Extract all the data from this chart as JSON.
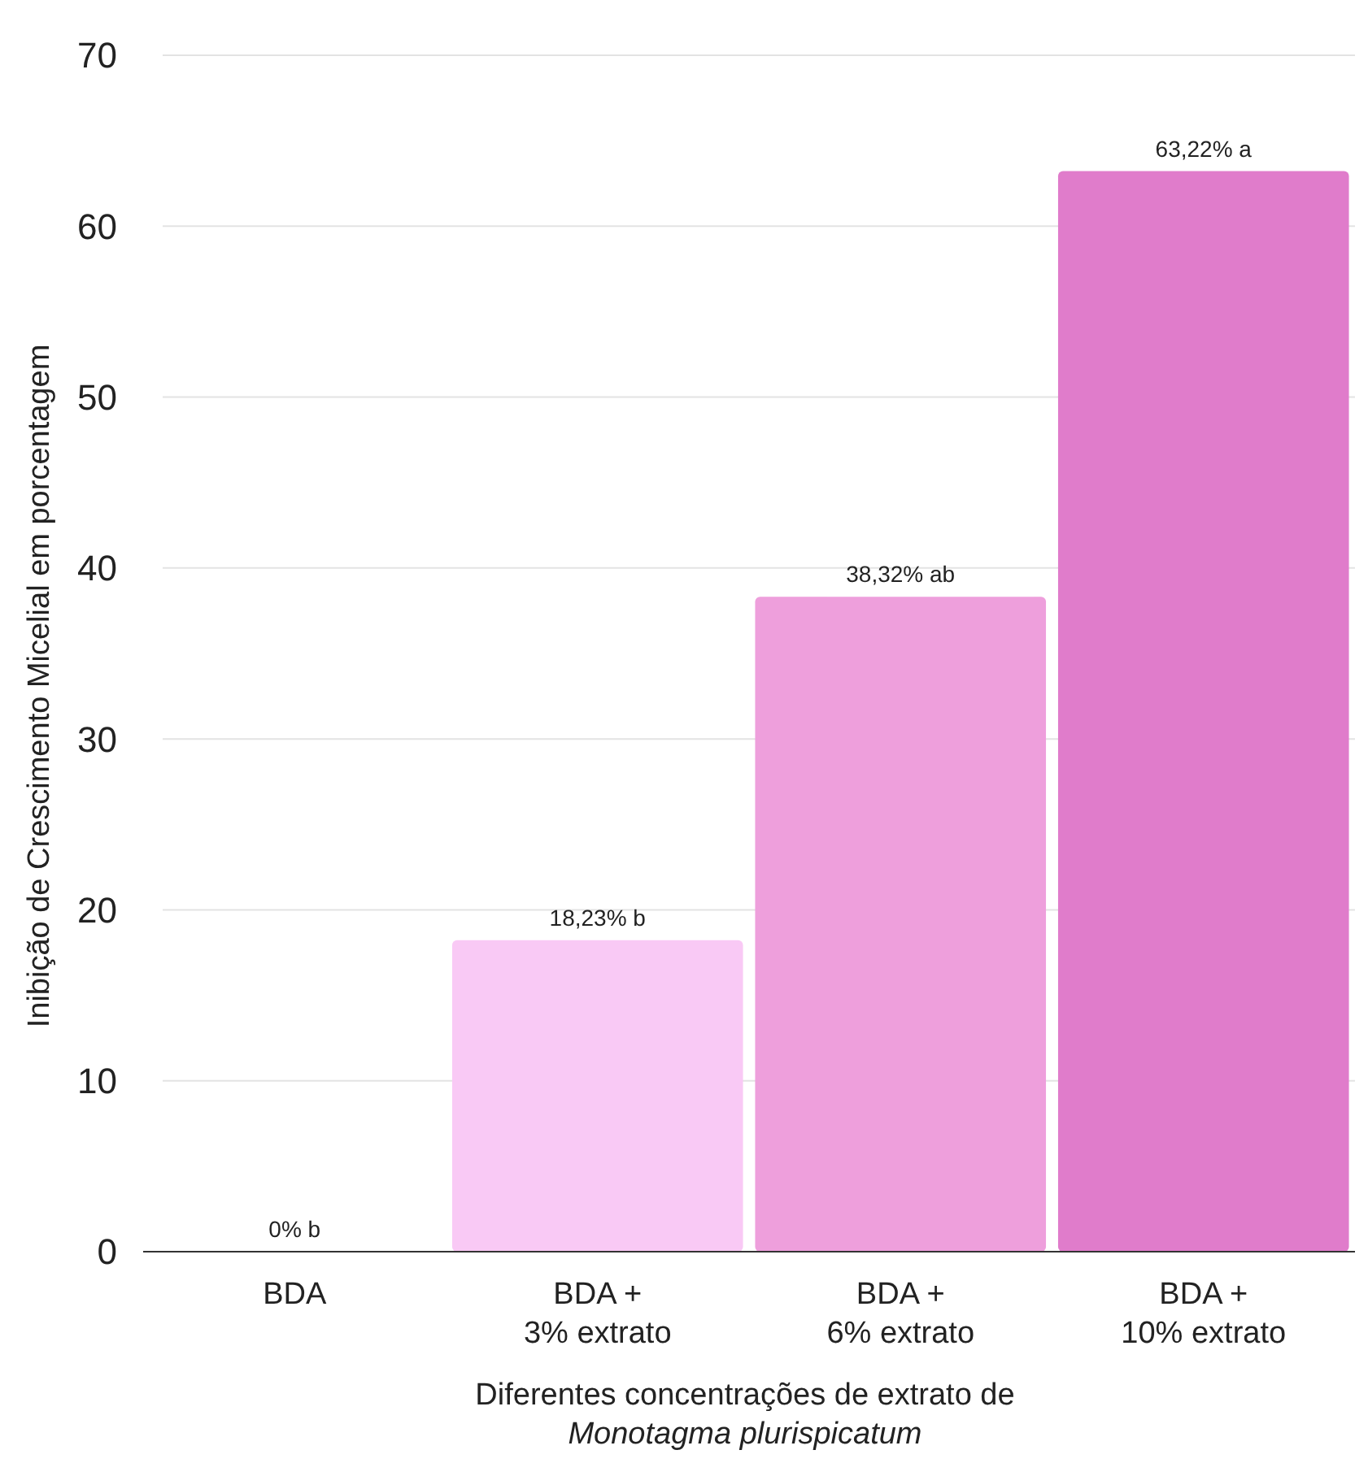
{
  "chart_data": {
    "type": "bar",
    "ylabel": "Inibição de Crescimento Micelial em porcentagem",
    "xlabel": "Diferentes concentrações de extrato de\nMonotagma plurispicatum",
    "categories": [
      "BDA",
      "BDA  +\n3% extrato",
      "BDA +\n6% extrato",
      "BDA +\n10% extrato"
    ],
    "values": [
      0,
      18.23,
      38.32,
      63.22
    ],
    "value_labels": [
      "0% b",
      "18,23% b",
      "38,32% ab",
      "63,22% a"
    ],
    "colors": [
      "#f9c9f5",
      "#f9c9f5",
      "#ee9fdc",
      "#e07ccb"
    ],
    "ylim": [
      0,
      70
    ],
    "yticks": [
      0,
      10,
      20,
      30,
      40,
      50,
      60,
      70
    ],
    "grid": "y"
  }
}
